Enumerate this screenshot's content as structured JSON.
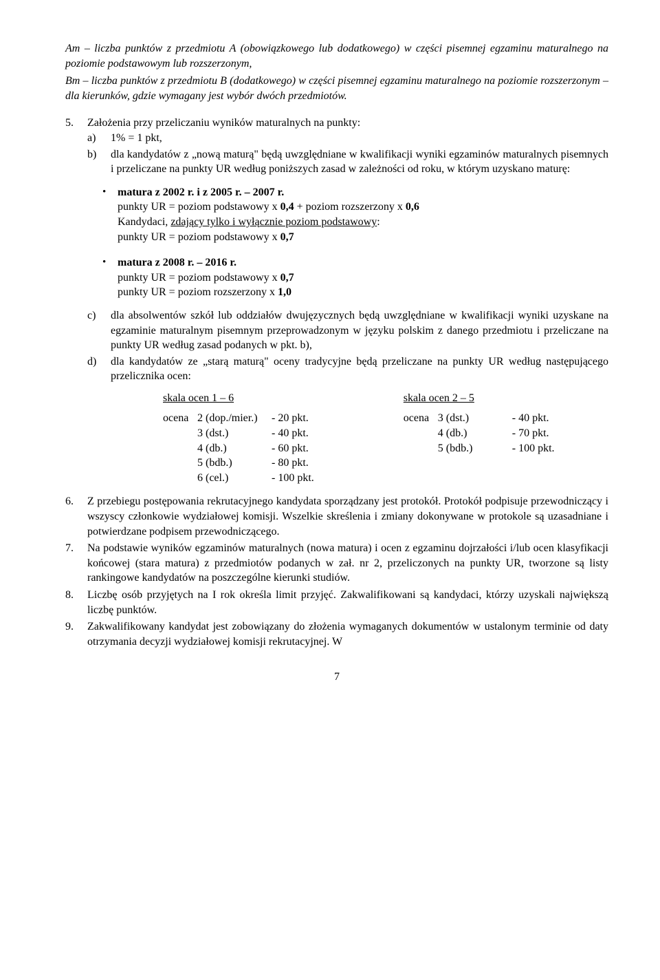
{
  "intro": {
    "p1": "Am – liczba punktów z przedmiotu A (obowiązkowego lub dodatkowego) w części pisemnej egzaminu maturalnego na poziomie podstawowym lub rozszerzonym,",
    "p2": "Bm – liczba punktów z przedmiotu B (dodatkowego) w części pisemnej egzaminu maturalnego na poziomie rozszerzonym – dla kierunków, gdzie wymagany jest wybór dwóch przedmiotów."
  },
  "item5": {
    "num": "5.",
    "lead": "Założenia przy przeliczaniu wyników maturalnych na punkty:",
    "a": {
      "l": "a)",
      "t": "1% = 1 pkt,"
    },
    "b": {
      "l": "b)",
      "t": "dla kandydatów z „nową maturą\" będą uwzględniane w kwalifikacji wyniki egzaminów maturalnych pisemnych i przeliczane na punkty UR według poniższych zasad w zależności od roku, w którym uzyskano maturę:"
    },
    "bullets": {
      "b1": {
        "head": "matura z 2002 r.  i z 2005 r. – 2007 r.",
        "l1a": "punkty UR = poziom podstawowy x ",
        "l1b": "0,4",
        "l1c": " + poziom rozszerzony x ",
        "l1d": "0,6",
        "l2a": "Kandydaci, ",
        "l2u": "zdający tylko i wyłącznie poziom podstawowy",
        "l2b": ":",
        "l3a": "punkty UR = poziom podstawowy x ",
        "l3b": "0,7"
      },
      "b2": {
        "head": "matura z 2008 r. – 2016 r.",
        "l1a": "punkty UR = poziom podstawowy x ",
        "l1b": "0,7",
        "l2a": "punkty UR = poziom rozszerzony x ",
        "l2b": "1,0"
      }
    },
    "c": {
      "l": "c)",
      "t": "dla absolwentów szkół lub oddziałów dwujęzycznych będą uwzględniane w kwalifikacji wyniki uzyskane na egzaminie maturalnym pisemnym przeprowadzonym w języku polskim z danego przedmiotu i przeliczane na punkty UR według zasad podanych w pkt. b),"
    },
    "d": {
      "l": "d)",
      "t": "dla kandydatów ze „starą maturą\" oceny tradycyjne będą przeliczane na punkty UR według następującego przelicznika ocen:"
    },
    "scaleA": {
      "hdr": "skala ocen 1 – 6",
      "r1": {
        "pre": "ocena",
        "g": "2 (dop./mier.)",
        "p": "-   20 pkt."
      },
      "r2": {
        "pre": "",
        "g": "3 (dst.)",
        "p": "-   40 pkt."
      },
      "r3": {
        "pre": "",
        "g": "4 (db.)",
        "p": "-   60 pkt."
      },
      "r4": {
        "pre": "",
        "g": "5 (bdb.)",
        "p": "-   80 pkt."
      },
      "r5": {
        "pre": "",
        "g": "6 (cel.)",
        "p": "- 100 pkt."
      }
    },
    "scaleB": {
      "hdr": "skala ocen 2 – 5",
      "r1": {
        "pre": "ocena",
        "g": "3 (dst.)",
        "p": "-   40 pkt."
      },
      "r2": {
        "pre": "",
        "g": "4 (db.)",
        "p": "-   70 pkt."
      },
      "r3": {
        "pre": "",
        "g": "5 (bdb.)",
        "p": "- 100 pkt."
      }
    }
  },
  "item6": {
    "num": "6.",
    "t": "Z przebiegu postępowania rekrutacyjnego kandydata sporządzany jest  protokół. Protokół podpisuje przewodniczący i wszyscy członkowie wydziałowej komisji. Wszelkie skreślenia i zmiany dokonywane w protokole są uzasadniane i potwierdzane podpisem przewodniczącego."
  },
  "item7": {
    "num": "7.",
    "t": "Na podstawie wyników egzaminów maturalnych (nowa matura) i ocen z egzaminu dojrzałości i/lub ocen klasyfikacji końcowej (stara matura) z przedmiotów podanych w zał. nr 2, przeliczonych na punkty UR, tworzone są listy rankingowe kandydatów na poszczególne kierunki studiów."
  },
  "item8": {
    "num": "8.",
    "t": "Liczbę osób przyjętych na I rok określa limit przyjęć. Zakwalifikowani są kandydaci, którzy uzyskali największą liczbę punktów."
  },
  "item9": {
    "num": "9.",
    "t": "Zakwalifikowany kandydat jest zobowiązany do złożenia wymaganych dokumentów w ustalonym terminie od daty otrzymania decyzji wydziałowej komisji rekrutacyjnej. W"
  },
  "pageNum": "7"
}
